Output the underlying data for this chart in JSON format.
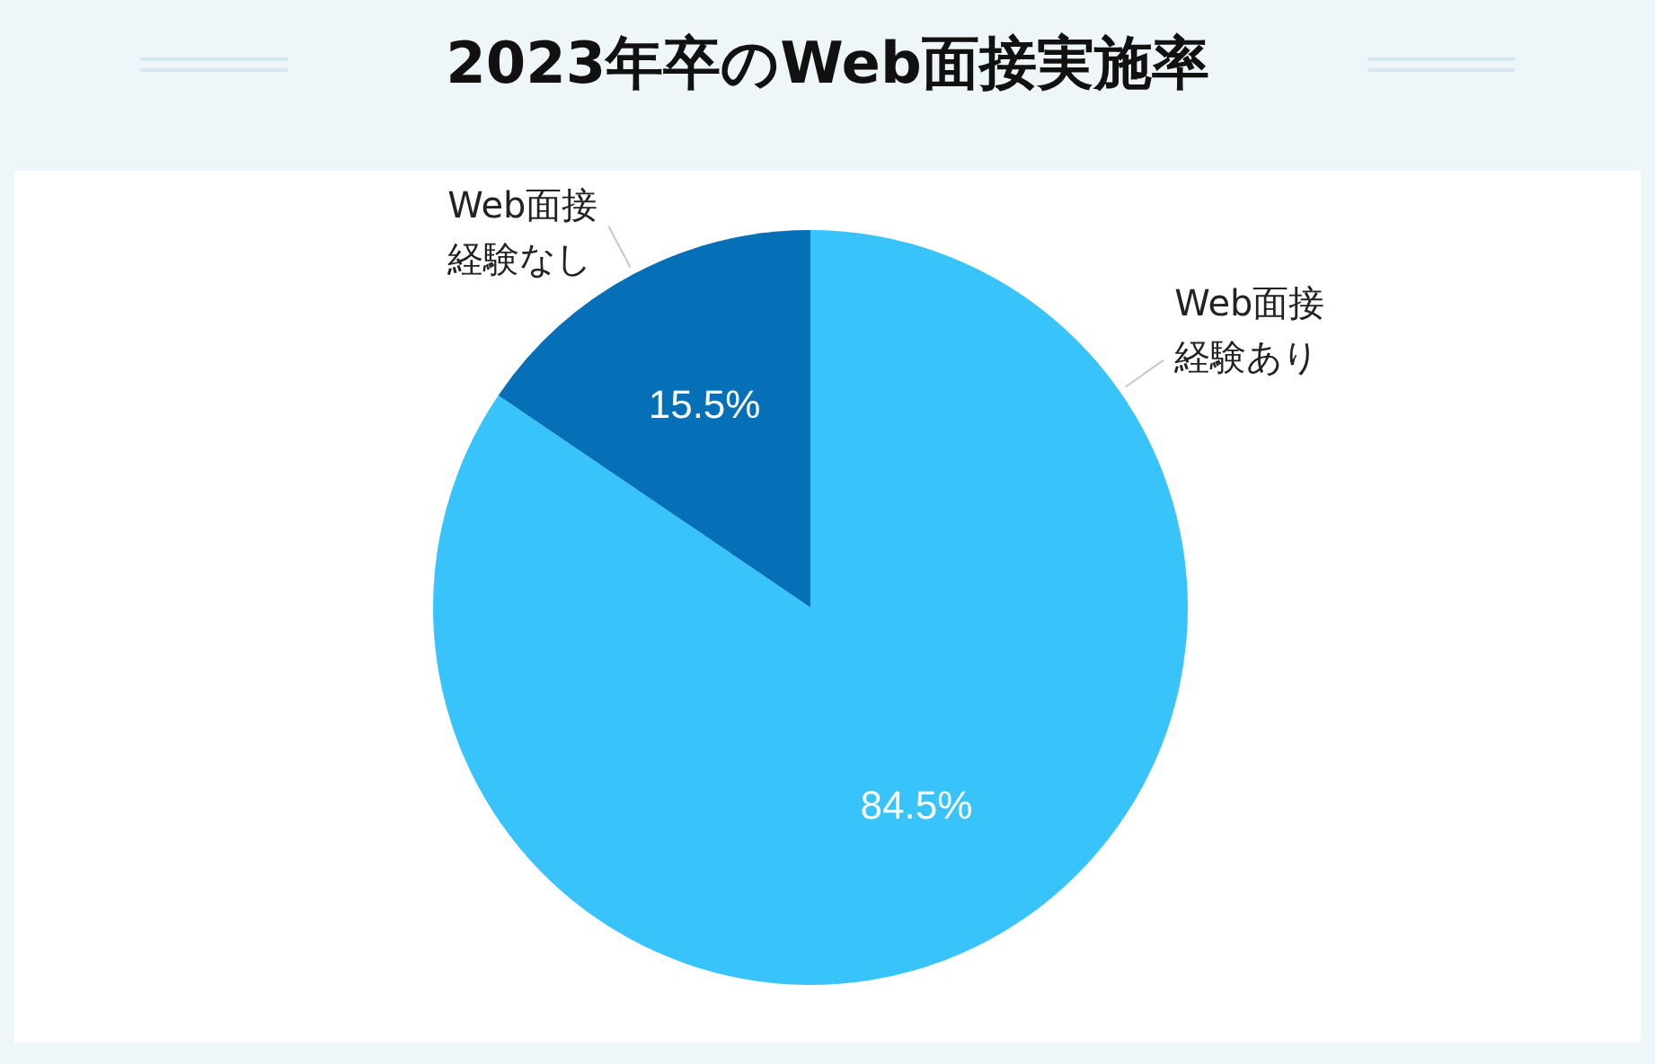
{
  "chart_data": {
    "type": "pie",
    "title": "2023年卒のWeb面接実施率",
    "categories": [
      "Web面接経験あり",
      "Web面接経験なし"
    ],
    "values": [
      84.5,
      15.5
    ],
    "colors": [
      "#38c4fb",
      "#0570b7"
    ],
    "value_labels": [
      "84.5%",
      "15.5%"
    ]
  }
}
